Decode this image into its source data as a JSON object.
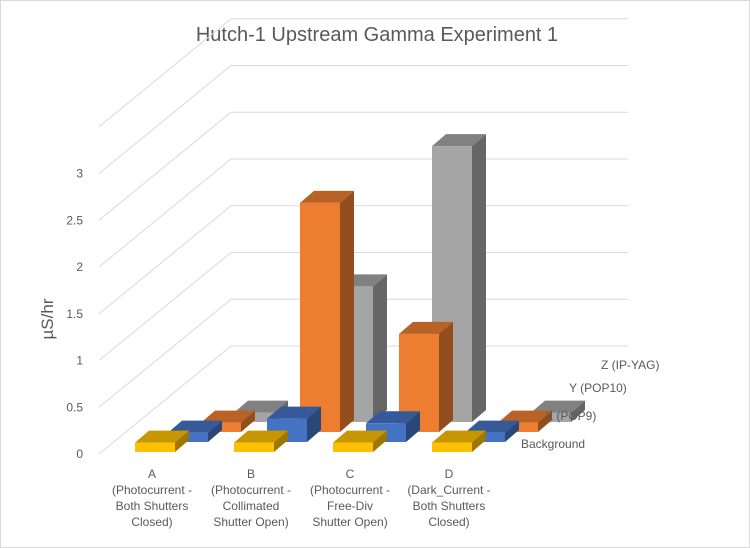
{
  "chart_data": {
    "type": "bar",
    "subtype": "3d-column",
    "title": "Hutch-1 Upstream Gamma Experiment 1",
    "ylabel": "µS/hr",
    "xlabel": "",
    "ylim": [
      0,
      3
    ],
    "yticks": [
      "0",
      "0.5",
      "1",
      "1.5",
      "2",
      "2.5",
      "3"
    ],
    "grid": true,
    "categories": [
      [
        "A",
        "(Photocurrent -",
        "Both Shutters",
        "Closed)"
      ],
      [
        "B",
        "(Photocurrent -",
        "Collimated",
        "Shutter Open)"
      ],
      [
        "C",
        "(Photocurrent -",
        "Free-Div",
        "Shutter Open)"
      ],
      [
        "D",
        "(Dark_Current -",
        "Both Shutters",
        "Closed)"
      ]
    ],
    "series": [
      {
        "name": "Background",
        "color": "#FFC000",
        "values": [
          0.1,
          0.1,
          0.1,
          0.1
        ]
      },
      {
        "name": "X (POP9)",
        "color": "#4472C4",
        "values": [
          0.1,
          0.25,
          0.2,
          0.1
        ]
      },
      {
        "name": "Y (POP10)",
        "color": "#ED7D31",
        "values": [
          0.1,
          2.45,
          1.05,
          0.1
        ]
      },
      {
        "name": "Z (IP-YAG)",
        "color": "#A5A5A5",
        "values": [
          0.1,
          1.45,
          2.95,
          0.1
        ]
      }
    ]
  }
}
